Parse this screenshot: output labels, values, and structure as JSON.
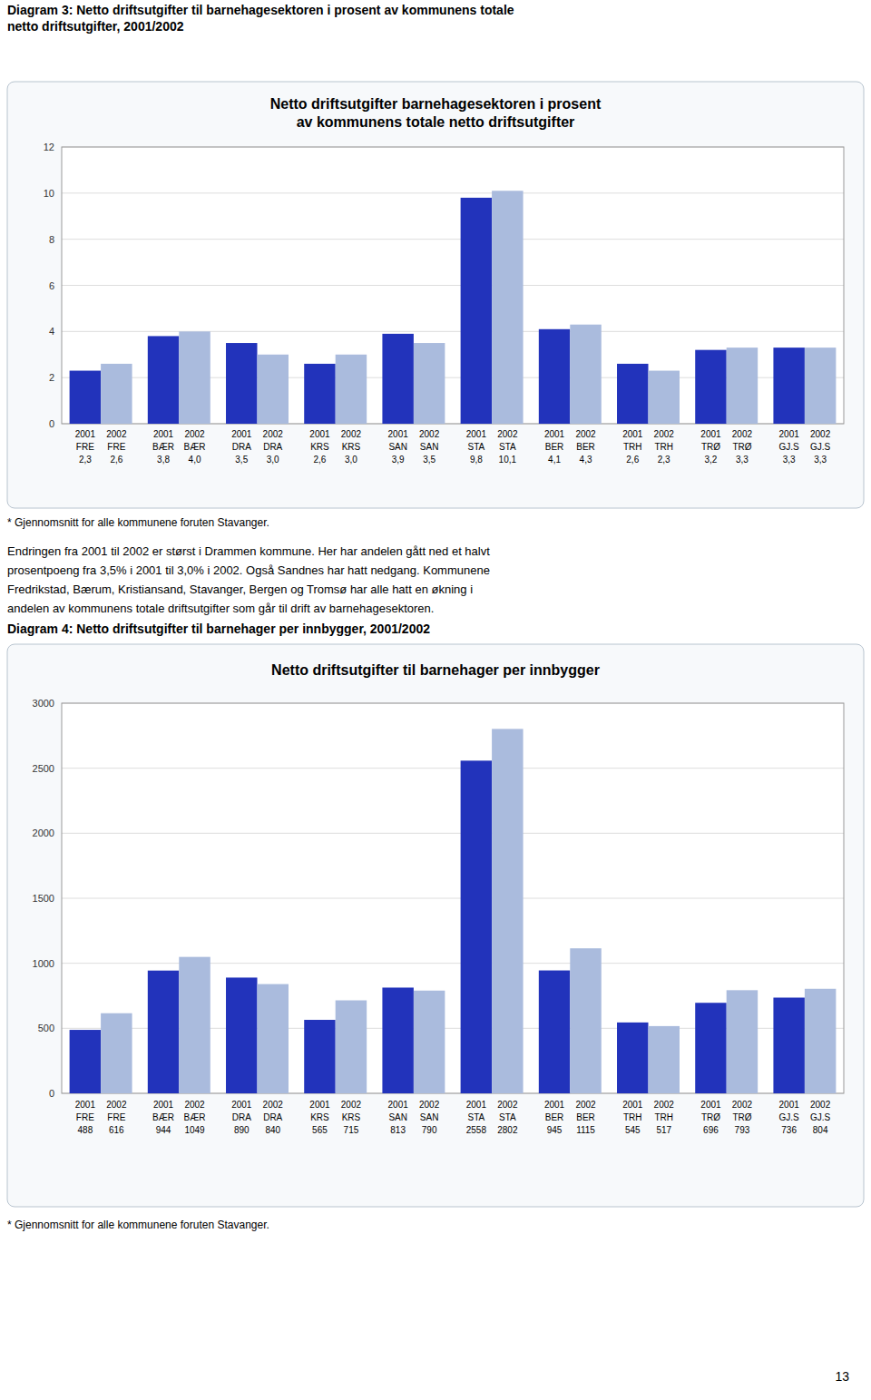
{
  "chart_data": [
    {
      "type": "bar",
      "title": "Netto driftsutgifter barnehagesektoren i prosent\nav kommunens totale netto driftsutgifter",
      "subtitle": [
        "Diagram 3: Netto driftsutgifter til barnehagesektoren i prosent av kommunens totale",
        "netto driftsutgifter, 2001/2002"
      ],
      "annotations": [
        "* Gjennomsnitt for alle kommunene foruten Stavanger."
      ],
      "categories": [
        "FRE",
        "BÆR",
        "DRA",
        "KRS",
        "SAN",
        "STA",
        "BER",
        "TRH",
        "TRØ",
        "GJ.S"
      ],
      "series": [
        {
          "name": "2001",
          "color": "#2233bb",
          "values": [
            2.3,
            3.8,
            3.5,
            2.6,
            3.9,
            9.8,
            4.1,
            2.6,
            3.2,
            3.3
          ],
          "value_labels": [
            "2,3",
            "3,8",
            "3,5",
            "2,6",
            "3,9",
            "9,8",
            "4,1",
            "2,6",
            "3,2",
            "3,3"
          ]
        },
        {
          "name": "2002",
          "color": "#aabbdd",
          "values": [
            2.6,
            4.0,
            3.0,
            3.0,
            3.5,
            10.1,
            4.3,
            2.3,
            3.3,
            3.3
          ],
          "value_labels": [
            "2,6",
            "4,0",
            "3,0",
            "3,0",
            "3,5",
            "10,1",
            "4,3",
            "2,3",
            "3,3",
            "3,3"
          ]
        }
      ],
      "ylim": [
        0,
        12
      ],
      "yticks": [
        0,
        2,
        4,
        6,
        8,
        10,
        12
      ],
      "grid": true,
      "data_labels": true
    },
    {
      "type": "bar",
      "title": "Netto driftsutgifter til barnehager per innbygger",
      "subtitle": [
        "Diagram 4: Netto driftsutgifter til barnehager per innbygger, 2001/2002"
      ],
      "annotations": [
        "* Gjennomsnitt for alle kommunene foruten Stavanger."
      ],
      "categories": [
        "FRE",
        "BÆR",
        "DRA",
        "KRS",
        "SAN",
        "STA",
        "BER",
        "TRH",
        "TRØ",
        "GJ.S"
      ],
      "series": [
        {
          "name": "2001",
          "color": "#2233bb",
          "values": [
            488,
            944,
            890,
            565,
            813,
            2558,
            945,
            545,
            696,
            736
          ]
        },
        {
          "name": "2002",
          "color": "#aabbdd",
          "values": [
            616,
            1049,
            840,
            715,
            790,
            2802,
            1115,
            517,
            793,
            804
          ]
        }
      ],
      "ylim": [
        0,
        3000
      ],
      "yticks": [
        0,
        500,
        1000,
        1500,
        2000,
        2500,
        3000
      ],
      "grid": true,
      "data_labels": true
    }
  ],
  "text": [
    "Endringen fra 2001 til 2002 er størst i Drammen kommune. Her har andelen gått ned et halvt",
    "prosentpoeng fra 3,5% i 2001 til 3,0% i 2002. Også Sandnes har hatt nedgang. Kommunene",
    "Fredrikstad, Bærum, Kristiansand, Stavanger, Bergen og Tromsø har alle hatt en økning i",
    "andelen av kommunens totale driftsutgifter som går til drift av barnehagesektoren."
  ],
  "page_number": "13"
}
